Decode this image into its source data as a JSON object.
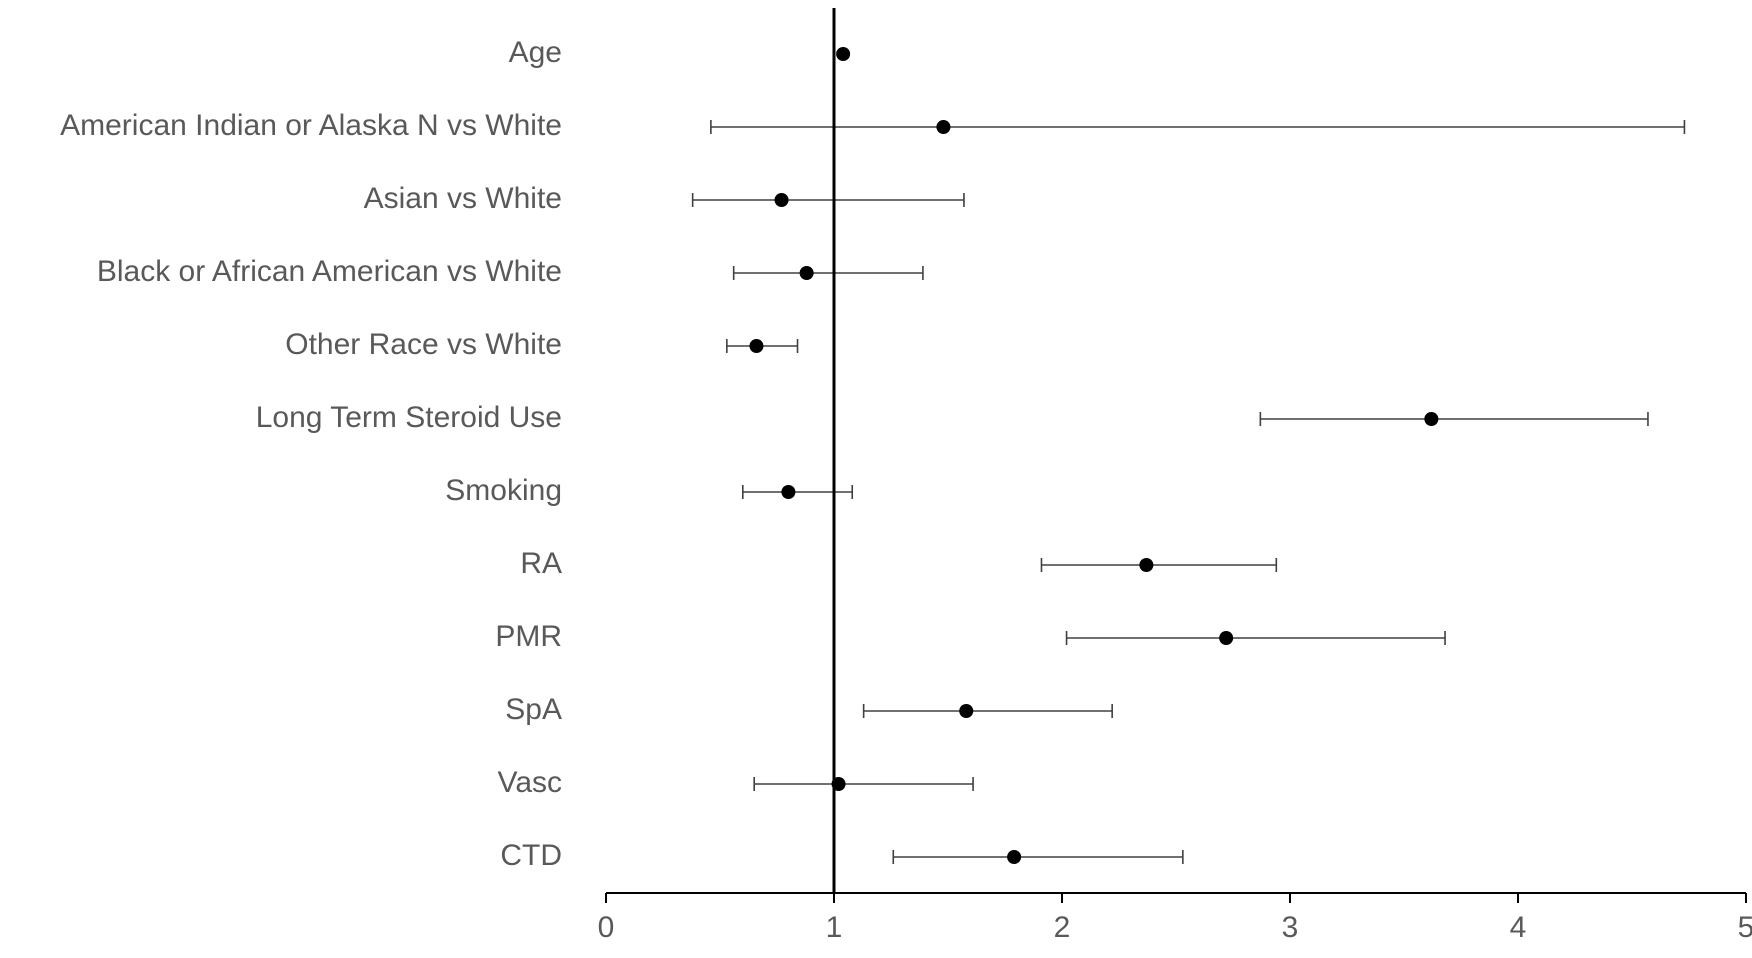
{
  "chart_data": {
    "type": "scatter",
    "subtype": "forest-plot",
    "title": "",
    "xlabel": "",
    "ylabel": "",
    "xlim": [
      0,
      5
    ],
    "x_ticks": [
      "0",
      "1",
      "2",
      "3",
      "4",
      "5"
    ],
    "reference_line_x": 1,
    "grid": false,
    "legend": "none",
    "marker_color": "#000000",
    "errorbar_color": "#404040",
    "label_color": "#595959",
    "categories": [
      "Age",
      "American Indian or Alaska N vs White",
      "Asian vs White",
      "Black or African American vs White",
      "Other Race vs White",
      "Long Term Steroid Use",
      "Smoking",
      "RA",
      "PMR",
      "SpA",
      "Vasc",
      "CTD"
    ],
    "points": [
      {
        "label": "Age",
        "estimate": 1.04,
        "lower": 1.04,
        "upper": 1.04
      },
      {
        "label": "American Indian or Alaska N vs White",
        "estimate": 1.48,
        "lower": 0.46,
        "upper": 4.73
      },
      {
        "label": "Asian vs White",
        "estimate": 0.77,
        "lower": 0.38,
        "upper": 1.57
      },
      {
        "label": "Black or African American vs White",
        "estimate": 0.88,
        "lower": 0.56,
        "upper": 1.39
      },
      {
        "label": "Other Race vs White",
        "estimate": 0.66,
        "lower": 0.53,
        "upper": 0.84
      },
      {
        "label": "Long Term Steroid Use",
        "estimate": 3.62,
        "lower": 2.87,
        "upper": 4.57
      },
      {
        "label": "Smoking",
        "estimate": 0.8,
        "lower": 0.6,
        "upper": 1.08
      },
      {
        "label": "RA",
        "estimate": 2.37,
        "lower": 1.91,
        "upper": 2.94
      },
      {
        "label": "PMR",
        "estimate": 2.72,
        "lower": 2.02,
        "upper": 3.68
      },
      {
        "label": "SpA",
        "estimate": 1.58,
        "lower": 1.13,
        "upper": 2.22
      },
      {
        "label": "Vasc",
        "estimate": 1.02,
        "lower": 0.65,
        "upper": 1.61
      },
      {
        "label": "CTD",
        "estimate": 1.79,
        "lower": 1.26,
        "upper": 2.53
      }
    ]
  }
}
